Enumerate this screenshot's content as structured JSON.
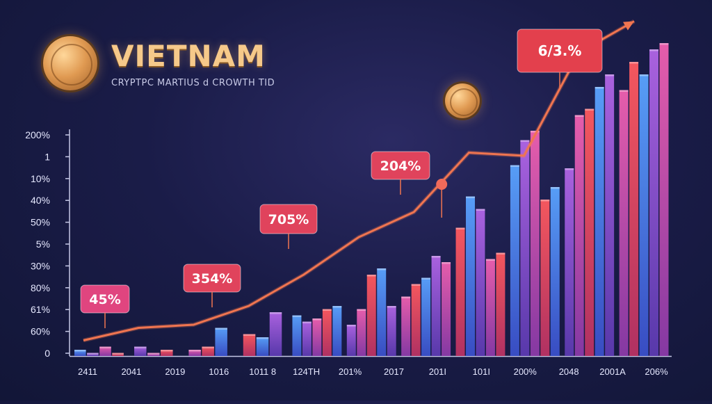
{
  "header": {
    "title": "VIETNAM",
    "subtitle": "CRYPTPC MARTIUS d CROWTH TID"
  },
  "chart_data": {
    "type": "bar",
    "title": "VIETNAM",
    "subtitle": "CRYPTPC MARTIUS d CROWTH TID",
    "y_tick_labels": [
      "200%",
      "1",
      "10%",
      "40%",
      "50%",
      "5%",
      "30%",
      "80%",
      "61%",
      "60%",
      "0"
    ],
    "x_tick_labels": [
      "2411",
      "2041",
      "2019",
      "1016",
      "1011 8",
      "124TH",
      "201%",
      "2017",
      "201I",
      "101I",
      "200%",
      "2048",
      "2001A",
      "206%"
    ],
    "grid": false,
    "ylim": [
      0,
      10
    ],
    "bar_groups": [
      [
        0.2,
        0.1,
        0.3,
        0.1
      ],
      [
        0.3,
        0.1,
        0.2
      ],
      [
        0.2,
        0.3,
        0.9
      ],
      [
        0.7,
        0.6,
        1.4
      ],
      [
        1.3,
        1.1,
        1.2,
        1.5,
        1.6
      ],
      [
        1.0,
        1.5,
        2.6,
        2.8,
        1.6
      ],
      [
        1.9,
        2.3,
        2.5,
        3.2,
        3.0
      ],
      [
        4.1,
        5.1,
        4.7,
        3.1,
        3.3
      ],
      [
        6.1,
        6.9,
        7.2,
        5.0,
        5.4
      ],
      [
        6.0,
        7.7,
        7.9,
        8.6,
        9.0
      ],
      [
        8.5,
        9.4,
        9.0,
        9.8,
        10.0
      ]
    ],
    "trend_line": [
      0.5,
      0.9,
      1.0,
      1.6,
      2.6,
      3.8,
      4.6,
      6.5,
      6.4,
      9.7,
      10.7
    ],
    "annotations": [
      {
        "text": "45%",
        "color": "#e0457f",
        "at_point": 1
      },
      {
        "text": "354%",
        "color": "#e0435c",
        "at_point": 3
      },
      {
        "text": "705%",
        "color": "#e0435c",
        "at_point": 5
      },
      {
        "text": "204%",
        "color": "#e0435c",
        "at_point": 7
      },
      {
        "text": "6/3.%",
        "color": "#e3404d",
        "at_point": 10
      }
    ],
    "colors": {
      "blue": "#4e8ef0",
      "purple": "#9a55d6",
      "pink": "#d64b9a",
      "red": "#e6454e",
      "line": "#e8704a"
    }
  }
}
